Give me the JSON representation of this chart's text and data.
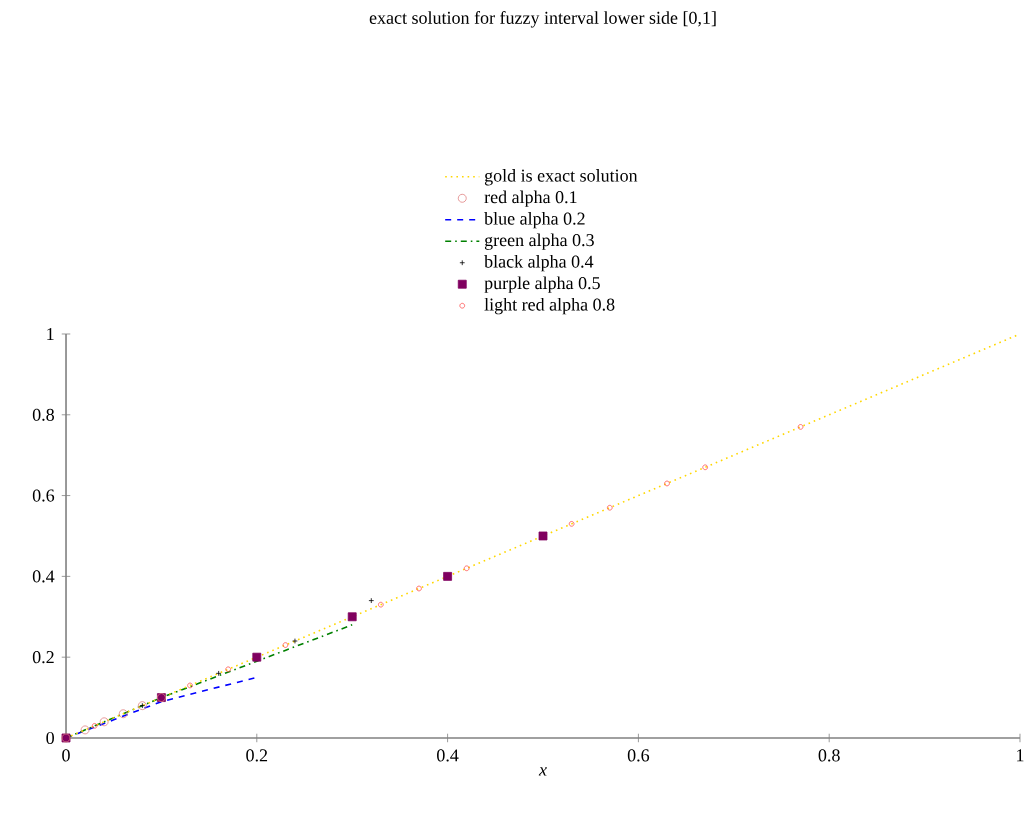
{
  "chart_data": {
    "type": "line",
    "title": "exact solution for fuzzy interval lower side [0,1]",
    "xlabel": "x",
    "xlim": [
      0,
      1
    ],
    "ylim": [
      0,
      1
    ],
    "xticks": [
      0,
      0.2,
      0.4,
      0.6,
      0.8,
      1
    ],
    "yticks": [
      0,
      0.2,
      0.4,
      0.6,
      0.8,
      1
    ],
    "legend": "top",
    "grid": false,
    "series": [
      {
        "name": "gold is exact solution",
        "line_style": "dotted",
        "color": "#ffd700",
        "x": [
          0,
          0.05,
          0.1,
          0.15,
          0.2,
          0.25,
          0.3,
          0.35,
          0.4,
          0.45,
          0.5,
          0.55,
          0.6,
          0.65,
          0.7,
          0.75,
          0.8,
          0.85,
          0.9,
          0.95,
          1
        ],
        "values": [
          0,
          0.05,
          0.1,
          0.15,
          0.2,
          0.25,
          0.3,
          0.35,
          0.4,
          0.45,
          0.5,
          0.55,
          0.6,
          0.65,
          0.7,
          0.75,
          0.8,
          0.85,
          0.9,
          0.95,
          1
        ]
      },
      {
        "name": "red alpha 0.1",
        "type": "scatter",
        "marker": "circle",
        "color": "#e08080",
        "x": [
          0,
          0.02,
          0.04,
          0.06,
          0.08,
          0.1
        ],
        "values": [
          0,
          0.02,
          0.04,
          0.06,
          0.08,
          0.1
        ]
      },
      {
        "name": "blue alpha 0.2",
        "type": "line",
        "line_style": "dashed",
        "color": "#0000ff",
        "x": [
          0,
          0.05,
          0.1,
          0.15,
          0.2
        ],
        "values": [
          0,
          0.045,
          0.09,
          0.12,
          0.15
        ]
      },
      {
        "name": "green alpha 0.3",
        "type": "line",
        "line_style": "dashdot",
        "color": "#008000",
        "x": [
          0,
          0.1,
          0.2,
          0.3
        ],
        "values": [
          0,
          0.1,
          0.19,
          0.28
        ]
      },
      {
        "name": "black alpha 0.4",
        "type": "scatter",
        "marker": "cross",
        "color": "#000000",
        "x": [
          0.08,
          0.16,
          0.24,
          0.32
        ],
        "values": [
          0.08,
          0.16,
          0.24,
          0.34
        ]
      },
      {
        "name": "purple alpha 0.5",
        "type": "scatter",
        "marker": "square",
        "color": "#800060",
        "x": [
          0,
          0.1,
          0.2,
          0.3,
          0.4,
          0.5
        ],
        "values": [
          0,
          0.1,
          0.2,
          0.3,
          0.4,
          0.5
        ]
      },
      {
        "name": "light red alpha 0.8",
        "type": "scatter",
        "marker": "circle",
        "color": "#ff5050",
        "x": [
          0.03,
          0.13,
          0.17,
          0.23,
          0.33,
          0.37,
          0.42,
          0.53,
          0.57,
          0.63,
          0.67,
          0.77
        ],
        "values": [
          0.03,
          0.13,
          0.17,
          0.23,
          0.33,
          0.37,
          0.42,
          0.53,
          0.57,
          0.63,
          0.67,
          0.77
        ]
      }
    ]
  }
}
